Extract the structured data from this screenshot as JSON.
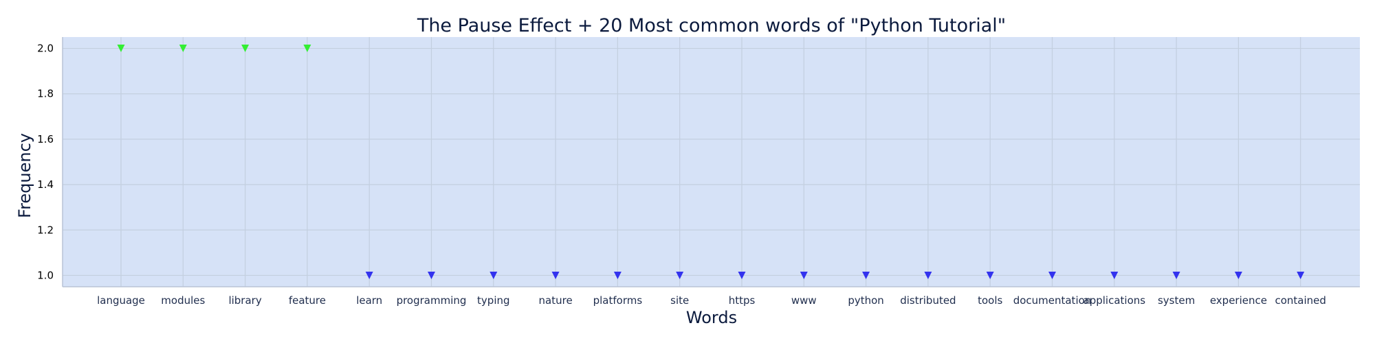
{
  "chart_data": {
    "type": "scatter",
    "title": "The Pause Effect + 20 Most common words of \"Python Tutorial\"",
    "xlabel": "Words",
    "ylabel": "Frequency",
    "categories": [
      "language",
      "modules",
      "library",
      "feature",
      "learn",
      "programming",
      "typing",
      "nature",
      "platforms",
      "site",
      "https",
      "www",
      "python",
      "distributed",
      "tools",
      "documentation",
      "applications",
      "system",
      "experience",
      "contained"
    ],
    "values": [
      2,
      2,
      2,
      2,
      1,
      1,
      1,
      1,
      1,
      1,
      1,
      1,
      1,
      1,
      1,
      1,
      1,
      1,
      1,
      1
    ],
    "yticks": [
      "1.0",
      "1.2",
      "1.4",
      "1.6",
      "1.8",
      "2.0"
    ],
    "ylim": [
      0.95,
      2.05
    ],
    "grid": true,
    "marker": "triangle-down",
    "colors": {
      "high": "#33ee33",
      "low": "#3333ee",
      "plot_background": "#d6e2f7",
      "grid": "#c3cfdf",
      "axis": "#b9c3d6"
    }
  }
}
